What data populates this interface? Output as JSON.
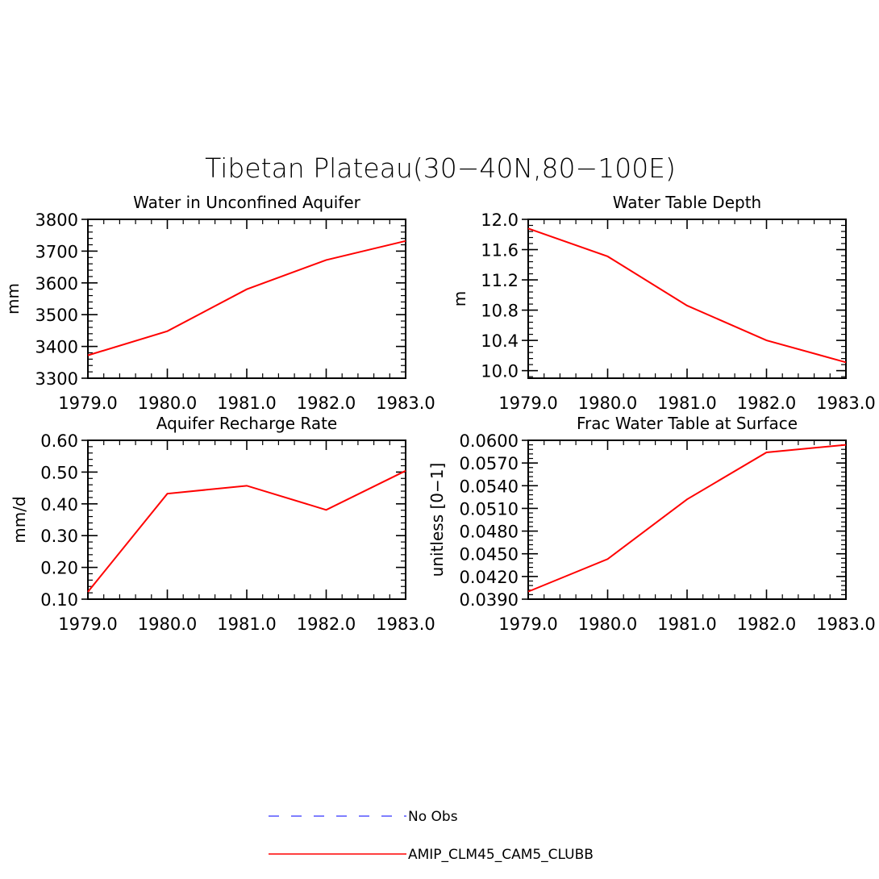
{
  "figure": {
    "title": "Tibetan Plateau(30−40N,80−100E)"
  },
  "colors": {
    "model": "#ff0000",
    "obs": "#5555ff"
  },
  "legend": {
    "items": [
      {
        "label": "No Obs",
        "style": "dashed",
        "color": "#5555ff"
      },
      {
        "label": "AMIP_CLM45_CAM5_CLUBB",
        "style": "solid",
        "color": "#ff0000"
      }
    ]
  },
  "chart_data": [
    {
      "type": "line",
      "title": "Water in Unconfined Aquifer",
      "ylabel": "mm",
      "xlim": [
        1979.0,
        1983.0
      ],
      "ylim": [
        3300,
        3800
      ],
      "xticks": [
        "1979.0",
        "1980.0",
        "1981.0",
        "1982.0",
        "1983.0"
      ],
      "yticks": [
        "3300",
        "3400",
        "3500",
        "3600",
        "3700",
        "3800"
      ],
      "x": [
        1979,
        1980,
        1981,
        1982,
        1983
      ],
      "series": [
        {
          "name": "AMIP_CLM45_CAM5_CLUBB",
          "values": [
            3372,
            3448,
            3580,
            3672,
            3732
          ]
        }
      ]
    },
    {
      "type": "line",
      "title": "Water Table Depth",
      "ylabel": "m",
      "xlim": [
        1979.0,
        1983.0
      ],
      "ylim": [
        9.9,
        12.0
      ],
      "xticks": [
        "1979.0",
        "1980.0",
        "1981.0",
        "1982.0",
        "1983.0"
      ],
      "yticks": [
        "10.0",
        "10.4",
        "10.8",
        "11.2",
        "11.6",
        "12.0"
      ],
      "x": [
        1979,
        1980,
        1981,
        1982,
        1983
      ],
      "series": [
        {
          "name": "AMIP_CLM45_CAM5_CLUBB",
          "values": [
            11.88,
            11.51,
            10.86,
            10.4,
            10.11
          ]
        }
      ]
    },
    {
      "type": "line",
      "title": "Aquifer Recharge Rate",
      "ylabel": "mm/d",
      "xlim": [
        1979.0,
        1983.0
      ],
      "ylim": [
        0.1,
        0.6
      ],
      "xticks": [
        "1979.0",
        "1980.0",
        "1981.0",
        "1982.0",
        "1983.0"
      ],
      "yticks": [
        "0.10",
        "0.20",
        "0.30",
        "0.40",
        "0.50",
        "0.60"
      ],
      "x": [
        1979,
        1980,
        1981,
        1982,
        1983
      ],
      "series": [
        {
          "name": "AMIP_CLM45_CAM5_CLUBB",
          "values": [
            0.123,
            0.432,
            0.457,
            0.381,
            0.504
          ]
        }
      ]
    },
    {
      "type": "line",
      "title": "Frac Water Table at Surface",
      "ylabel": "unitless [0−1]",
      "xlim": [
        1979.0,
        1983.0
      ],
      "ylim": [
        0.039,
        0.06
      ],
      "xticks": [
        "1979.0",
        "1980.0",
        "1981.0",
        "1982.0",
        "1983.0"
      ],
      "yticks": [
        "0.0390",
        "0.0420",
        "0.0450",
        "0.0480",
        "0.0510",
        "0.0540",
        "0.0570",
        "0.0600"
      ],
      "x": [
        1979,
        1980,
        1981,
        1982,
        1983
      ],
      "series": [
        {
          "name": "AMIP_CLM45_CAM5_CLUBB",
          "values": [
            0.04,
            0.0443,
            0.0522,
            0.0584,
            0.0594
          ]
        }
      ]
    }
  ]
}
